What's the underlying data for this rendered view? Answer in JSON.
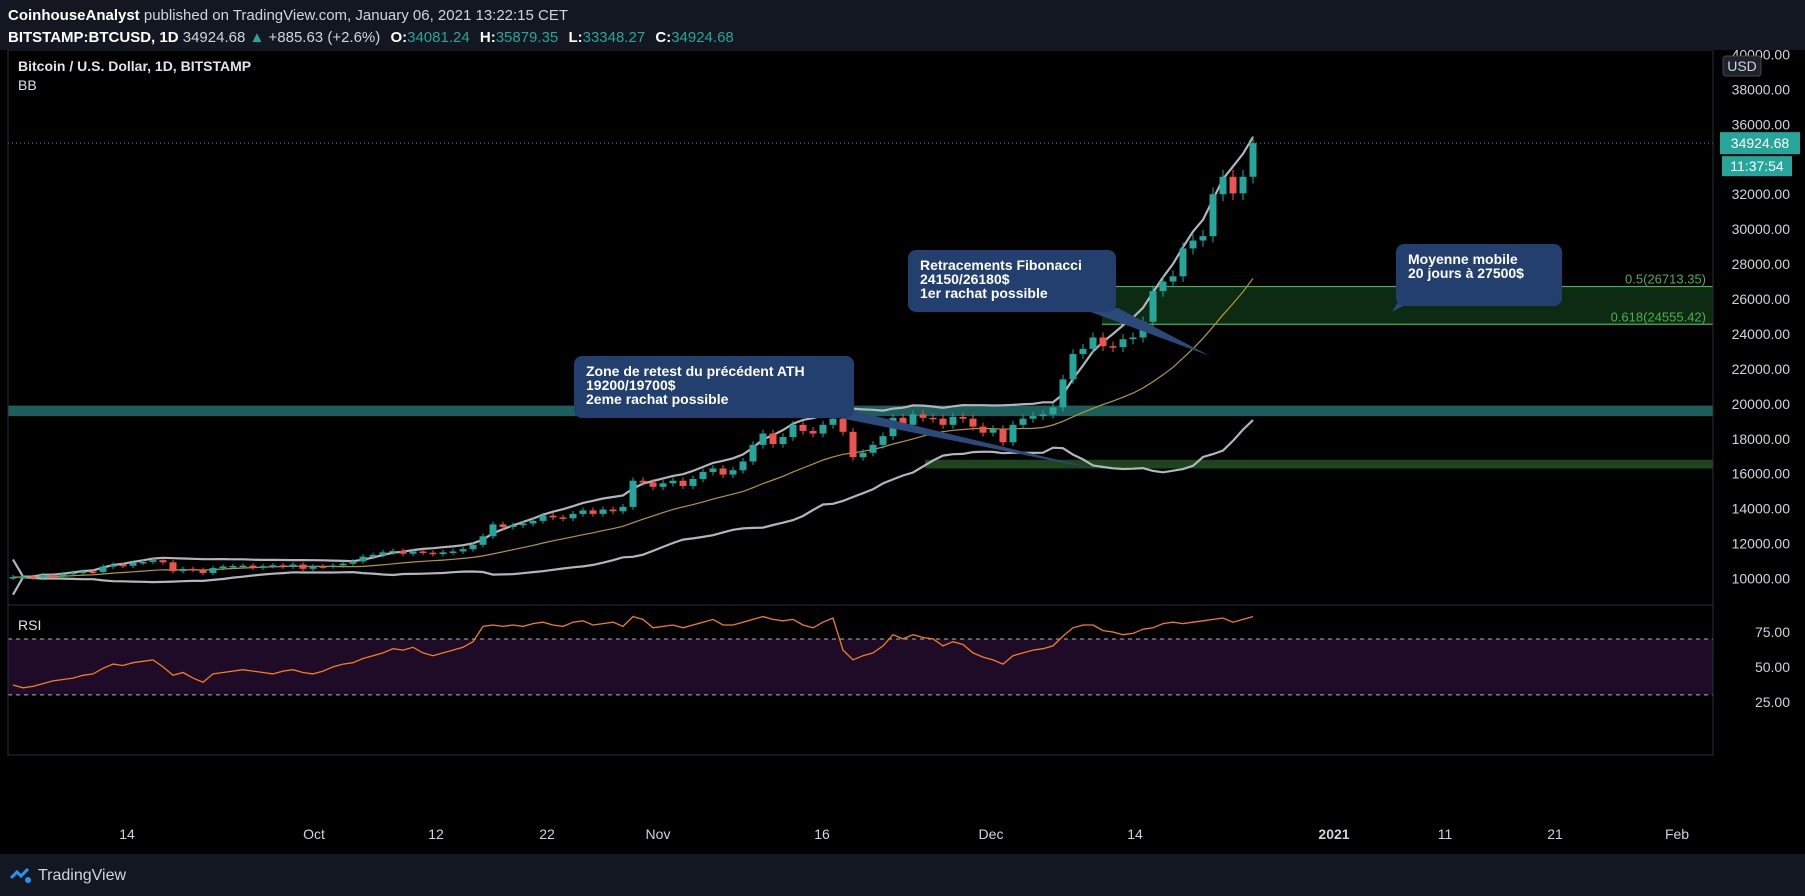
{
  "header": {
    "author": "CoinhouseAnalyst",
    "published": "published on TradingView.com, January 06, 2021 13:22:15 CET",
    "symbol": "BITSTAMP:BTCUSD, 1D",
    "last": "34924.68",
    "change": "+885.63 (+2.6%)",
    "open_label": "O:",
    "open": "34081.24",
    "high_label": "H:",
    "high": "35879.35",
    "low_label": "L:",
    "low": "33348.27",
    "close_label": "C:",
    "close": "34924.68"
  },
  "legend": {
    "title": "Bitcoin / U.S. Dollar, 1D, BITSTAMP",
    "indicator": "BB"
  },
  "rsi_label": "RSI",
  "footer": {
    "brand": "TradingView"
  },
  "price_axis": {
    "currency": "USD",
    "ticks": [
      "40000.00",
      "38000.00",
      "36000.00",
      "32000.00",
      "30000.00",
      "28000.00",
      "26000.00",
      "24000.00",
      "22000.00",
      "20000.00",
      "18000.00",
      "16000.00",
      "14000.00",
      "12000.00",
      "10000.00"
    ],
    "last_price_tag": "34924.68",
    "countdown": "11:37:54"
  },
  "rsi_axis": {
    "ticks": [
      "75.00",
      "50.00",
      "25.00"
    ]
  },
  "time_axis": {
    "labels": [
      "14",
      "Oct",
      "12",
      "22",
      "Nov",
      "16",
      "Dec",
      "14",
      "2021",
      "11",
      "21",
      "Feb"
    ]
  },
  "annotations": [
    {
      "text": [
        "Retracements Fibonacci",
        "24150/26180$",
        "1er rachat possible"
      ]
    },
    {
      "text": [
        "Zone de retest du précédent ATH",
        "19200/19700$",
        "2eme rachat possible"
      ]
    },
    {
      "text": [
        "Moyenne mobile",
        "20 jours à 27500$"
      ]
    }
  ],
  "fib_levels": [
    {
      "label": "0.5(26713.35)",
      "value": 26713.35
    },
    {
      "label": "0.618(24555.42)",
      "value": 24555.42
    }
  ],
  "colors": {
    "up": "#26a69a",
    "down": "#ef5350",
    "bb_band": "#b2b5be",
    "sma": "#b39a2f",
    "rsi": "#f57c1f",
    "zone": "#1b5e5c",
    "fib": "#4caf50"
  },
  "chart_data": {
    "type": "candlestick",
    "title": "Bitcoin / U.S. Dollar, 1D, BITSTAMP",
    "ylim": [
      9000,
      40500
    ],
    "zones": [
      {
        "name": "ATH retest",
        "from": 19300,
        "to": 19900
      },
      {
        "name": "support",
        "from": 16300,
        "to": 16800
      },
      {
        "name": "fib box",
        "from": 24555.42,
        "to": 26713.35
      }
    ],
    "close_series": [
      10080,
      10100,
      10050,
      10200,
      10140,
      10250,
      10330,
      10400,
      10380,
      10680,
      10790,
      10730,
      10900,
      10950,
      11050,
      10930,
      10420,
      10550,
      10500,
      10320,
      10600,
      10690,
      10720,
      10740,
      10620,
      10710,
      10760,
      10680,
      10800,
      10560,
      10700,
      10690,
      10750,
      10850,
      10980,
      11250,
      11350,
      11500,
      11580,
      11420,
      11550,
      11480,
      11400,
      11500,
      11550,
      11680,
      11930,
      12420,
      13100,
      12950,
      13050,
      13150,
      13300,
      13600,
      13500,
      13450,
      13700,
      13900,
      13700,
      13950,
      13850,
      14100,
      15600,
      15500,
      15250,
      15450,
      15600,
      15300,
      15700,
      16100,
      16300,
      15950,
      16200,
      16700,
      17650,
      18300,
      17700,
      18100,
      18800,
      18450,
      18300,
      18800,
      19150,
      18400,
      16950,
      17200,
      17650,
      18150,
      19200,
      18800,
      19400,
      19200,
      19150,
      18800,
      19250,
      19150,
      18700,
      18350,
      18550,
      17800,
      18800,
      19150,
      19300,
      19400,
      19800,
      21400,
      22850,
      23150,
      23800,
      23300,
      23250,
      23700,
      23800,
      24700,
      26450,
      27000,
      27300,
      28900,
      29350,
      29600,
      32000,
      33000,
      32050,
      33000,
      34924.68
    ],
    "rsi": [
      37,
      35,
      36,
      38,
      40,
      41,
      42,
      44,
      45,
      49,
      52,
      51,
      53,
      54,
      55,
      50,
      44,
      46,
      42,
      39,
      45,
      46,
      47,
      48,
      47,
      46,
      45,
      47,
      48,
      46,
      45,
      47,
      50,
      52,
      53,
      56,
      58,
      60,
      63,
      62,
      64,
      60,
      58,
      60,
      62,
      64,
      68,
      79,
      80,
      79,
      80,
      79,
      81,
      82,
      80,
      79,
      82,
      83,
      80,
      81,
      82,
      79,
      86,
      84,
      78,
      79,
      80,
      78,
      80,
      82,
      84,
      80,
      80,
      82,
      84,
      86,
      84,
      83,
      84,
      80,
      78,
      82,
      85,
      62,
      55,
      58,
      60,
      65,
      73,
      70,
      73,
      71,
      70,
      65,
      68,
      66,
      60,
      57,
      55,
      52,
      58,
      60,
      62,
      63,
      65,
      72,
      78,
      80,
      80,
      76,
      75,
      73,
      74,
      77,
      78,
      81,
      82,
      81,
      82,
      83,
      84,
      85,
      82,
      84,
      86
    ]
  }
}
